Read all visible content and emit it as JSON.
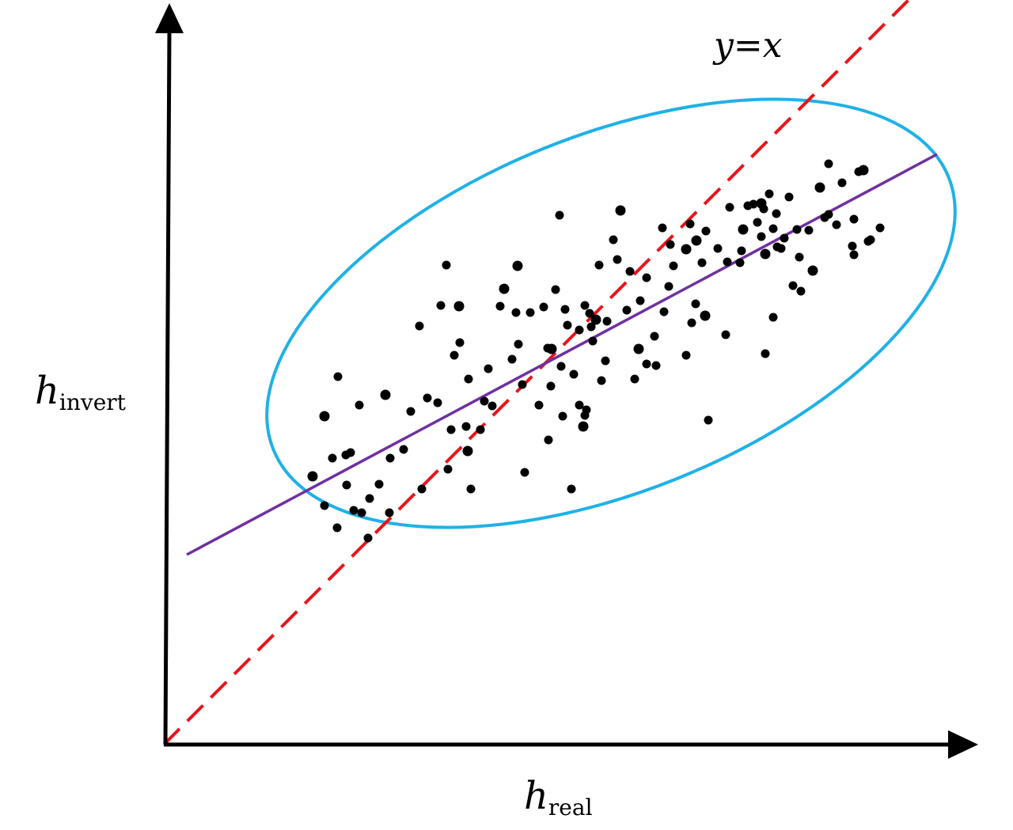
{
  "chart_data": {
    "type": "scatter",
    "title": "",
    "xlabel": {
      "main": "h",
      "subscript": "real"
    },
    "ylabel": {
      "main": "h",
      "subscript": "invert"
    },
    "xlim": [
      0,
      10
    ],
    "ylim": [
      0,
      10
    ],
    "ticks": "none",
    "grid": false,
    "legend": "none",
    "colors": {
      "points": "#000000",
      "identity_line": "#e8151b",
      "fit_line": "#7030a0",
      "ellipse": "#1fb1e6",
      "axes": "#000000"
    },
    "reference_lines": [
      {
        "label": "y=x",
        "style": "dashed",
        "color": "#e8151b",
        "slope": 1,
        "intercept": 0
      },
      {
        "style": "solid",
        "color": "#7030a0",
        "from": [
          0.29,
          2.4
        ],
        "to": [
          9.77,
          7.46
        ]
      }
    ],
    "annotation": {
      "text": "y=x",
      "x": 7.3,
      "y": 9.5
    },
    "confidence_ellipse": {
      "color": "#1fb1e6",
      "center": [
        5.65,
        5.45
      ],
      "semi_major": 4.6,
      "semi_minor": 2.25,
      "angle_deg": 22
    },
    "points": [
      [
        1.88,
        3.39
      ],
      [
        2.03,
        3.02
      ],
      [
        2.19,
        2.74
      ],
      [
        2.31,
        3.28
      ],
      [
        2.4,
        2.96
      ],
      [
        2.2,
        4.65
      ],
      [
        2.36,
        3.69
      ],
      [
        2.03,
        4.15
      ],
      [
        2.47,
        4.29
      ],
      [
        2.6,
        3.11
      ],
      [
        2.58,
        2.61
      ],
      [
        2.72,
        3.29
      ],
      [
        2.86,
        3.62
      ],
      [
        2.85,
        2.93
      ],
      [
        2.8,
        4.42
      ],
      [
        3.03,
        3.73
      ],
      [
        3.12,
        4.21
      ],
      [
        3.33,
        4.38
      ],
      [
        3.23,
        5.29
      ],
      [
        3.46,
        4.32
      ],
      [
        3.5,
        5.55
      ],
      [
        3.73,
        5.54
      ],
      [
        3.57,
        6.06
      ],
      [
        3.59,
        3.48
      ],
      [
        3.67,
        4.92
      ],
      [
        3.74,
        5.08
      ],
      [
        3.82,
        4.02
      ],
      [
        3.88,
        3.23
      ],
      [
        3.84,
        3.71
      ],
      [
        4.0,
        3.98
      ],
      [
        4.05,
        4.34
      ],
      [
        4.1,
        4.75
      ],
      [
        4.15,
        4.28
      ],
      [
        3.85,
        4.62
      ],
      [
        4.25,
        5.54
      ],
      [
        4.3,
        5.76
      ],
      [
        4.4,
        4.87
      ],
      [
        4.45,
        5.46
      ],
      [
        4.53,
        4.55
      ],
      [
        4.48,
        5.06
      ],
      [
        4.74,
        4.29
      ],
      [
        4.56,
        3.44
      ],
      [
        4.47,
        6.05
      ],
      [
        4.63,
        5.46
      ],
      [
        4.86,
        3.85
      ],
      [
        4.95,
        5.75
      ],
      [
        4.85,
        5.01
      ],
      [
        4.8,
        5.53
      ],
      [
        5.0,
        6.69
      ],
      [
        4.9,
        5.0
      ],
      [
        5.02,
        4.78
      ],
      [
        5.04,
        4.15
      ],
      [
        5.1,
        5.3
      ],
      [
        5.07,
        5.5
      ],
      [
        5.18,
        4.68
      ],
      [
        5.25,
        4.29
      ],
      [
        5.3,
        4.02
      ],
      [
        5.32,
        4.16
      ],
      [
        5.34,
        4.23
      ],
      [
        5.4,
        5.28
      ],
      [
        5.25,
        5.24
      ],
      [
        5.32,
        5.55
      ],
      [
        5.38,
        5.45
      ],
      [
        5.46,
        5.37
      ],
      [
        5.5,
        6.06
      ],
      [
        5.6,
        5.35
      ],
      [
        5.42,
        5.1
      ],
      [
        5.58,
        4.85
      ],
      [
        5.68,
        6.38
      ],
      [
        5.73,
        6.13
      ],
      [
        5.77,
        6.75
      ],
      [
        5.95,
        4.62
      ],
      [
        5.85,
        5.49
      ],
      [
        5.89,
        5.98
      ],
      [
        6.02,
        5.61
      ],
      [
        6.1,
        4.81
      ],
      [
        6.2,
        5.16
      ],
      [
        6.0,
        5.0
      ],
      [
        6.22,
        4.79
      ],
      [
        6.32,
        5.47
      ],
      [
        6.38,
        5.79
      ],
      [
        6.4,
        6.32
      ],
      [
        6.44,
        6.05
      ],
      [
        6.65,
        6.58
      ],
      [
        6.6,
        6.26
      ],
      [
        6.72,
        5.57
      ],
      [
        6.8,
        6.09
      ],
      [
        6.85,
        6.49
      ],
      [
        7.0,
        6.27
      ],
      [
        7.1,
        5.18
      ],
      [
        7.15,
        6.79
      ],
      [
        7.32,
        6.51
      ],
      [
        7.38,
        6.81
      ],
      [
        7.45,
        6.83
      ],
      [
        7.5,
        6.6
      ],
      [
        7.55,
        6.42
      ],
      [
        7.7,
        6.52
      ],
      [
        7.75,
        6.29
      ],
      [
        7.55,
        6.84
      ],
      [
        7.3,
        6.24
      ],
      [
        7.28,
        6.09
      ],
      [
        7.65,
        6.96
      ],
      [
        7.9,
        6.92
      ],
      [
        7.8,
        6.27
      ],
      [
        7.84,
        6.4
      ],
      [
        7.6,
        6.2
      ],
      [
        7.74,
        6.71
      ],
      [
        8.03,
        6.16
      ],
      [
        7.95,
        5.8
      ],
      [
        8.35,
        6.66
      ],
      [
        7.7,
        5.4
      ],
      [
        7.6,
        4.94
      ],
      [
        8.2,
        5.99
      ],
      [
        8.4,
        6.7
      ],
      [
        8.0,
        6.51
      ],
      [
        6.88,
        4.1
      ],
      [
        7.58,
        6.77
      ],
      [
        6.1,
        5.9
      ],
      [
        6.6,
        4.92
      ],
      [
        6.84,
        5.42
      ],
      [
        8.05,
        5.73
      ],
      [
        8.5,
        6.57
      ],
      [
        8.7,
        6.3
      ],
      [
        8.15,
        6.5
      ],
      [
        8.9,
        6.36
      ],
      [
        8.78,
        7.24
      ],
      [
        8.84,
        7.26
      ],
      [
        8.72,
        6.64
      ],
      [
        8.4,
        7.34
      ],
      [
        8.57,
        7.1
      ],
      [
        8.93,
        6.38
      ],
      [
        8.72,
        6.19
      ],
      [
        9.05,
        6.53
      ],
      [
        8.29,
        7.04
      ],
      [
        3.63,
        3.98
      ],
      [
        3.26,
        3.23
      ],
      [
        2.5,
        2.93
      ],
      [
        2.3,
        3.66
      ],
      [
        2.13,
        3.62
      ],
      [
        6.3,
        6.53
      ],
      [
        6.73,
        6.37
      ],
      [
        4.89,
        4.53
      ],
      [
        5.53,
        4.6
      ],
      [
        6.67,
        5.33
      ],
      [
        7.12,
        6.1
      ],
      [
        5.15,
        3.23
      ]
    ]
  }
}
